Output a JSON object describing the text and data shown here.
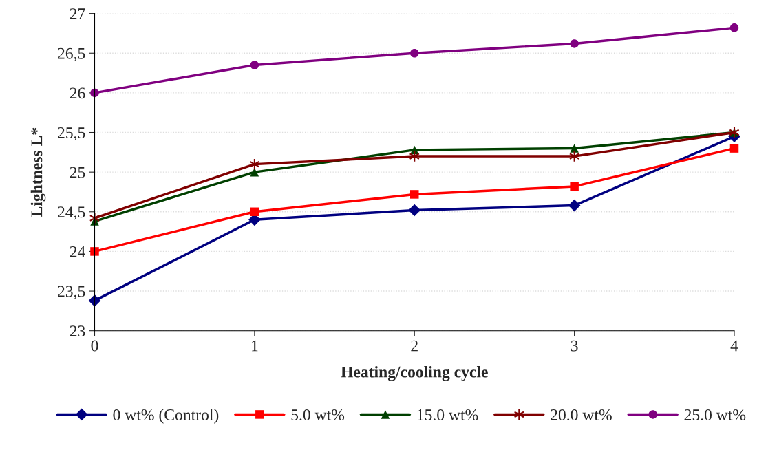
{
  "chart_data": {
    "type": "line",
    "xlabel": "Heating/cooling cycle",
    "ylabel": "Lightness L*",
    "x": [
      0,
      1,
      2,
      3,
      4
    ],
    "series": [
      {
        "name": "0 wt% (Control)",
        "color": "#000080",
        "marker": "diamond",
        "values": [
          23.38,
          24.4,
          24.52,
          24.58,
          25.45
        ]
      },
      {
        "name": "5.0 wt%",
        "color": "#ff0000",
        "marker": "square",
        "values": [
          24.0,
          24.5,
          24.72,
          24.82,
          25.3
        ]
      },
      {
        "name": "15.0 wt%",
        "color": "#004000",
        "marker": "triangle",
        "values": [
          24.38,
          25.0,
          25.28,
          25.3,
          25.5
        ]
      },
      {
        "name": "20.0 wt%",
        "color": "#800000",
        "marker": "cross",
        "values": [
          24.42,
          25.1,
          25.2,
          25.2,
          25.5
        ]
      },
      {
        "name": "25.0 wt%",
        "color": "#800080",
        "marker": "circle",
        "values": [
          26.0,
          26.35,
          26.5,
          26.62,
          26.82
        ]
      }
    ],
    "xlim": [
      0,
      4
    ],
    "xticks": [
      0,
      1,
      2,
      3,
      4
    ],
    "ylim": [
      23,
      27
    ],
    "yticks": [
      {
        "value": 23,
        "label": "23"
      },
      {
        "value": 23.5,
        "label": "23,5"
      },
      {
        "value": 24,
        "label": "24"
      },
      {
        "value": 24.5,
        "label": "24,5"
      },
      {
        "value": 25,
        "label": "25"
      },
      {
        "value": 25.5,
        "label": "25,5"
      },
      {
        "value": 26,
        "label": "26"
      },
      {
        "value": 26.5,
        "label": "26,5"
      },
      {
        "value": 27,
        "label": "27"
      }
    ],
    "grid": "y",
    "legend": "bottom",
    "line_style": "solid"
  }
}
